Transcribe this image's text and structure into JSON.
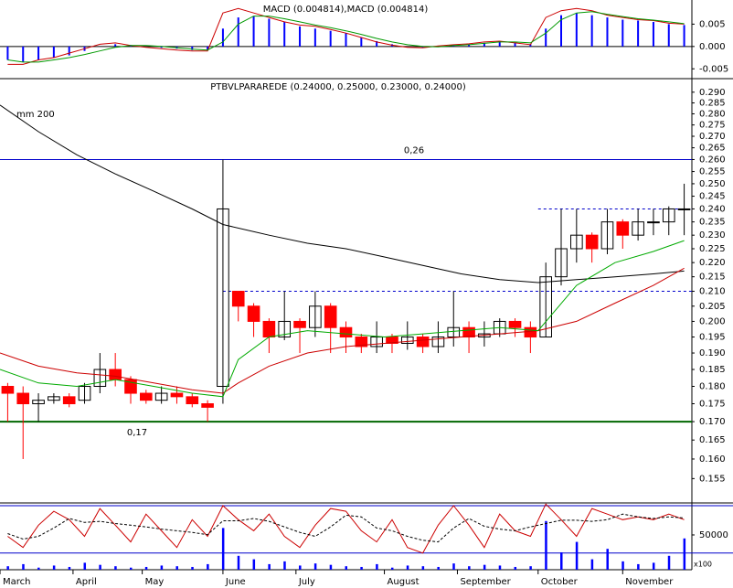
{
  "chart_data": [
    {
      "type": "macd",
      "title": "MACD (0.004814),MACD (0.004814)",
      "xlim": [
        0,
        180
      ],
      "x": [
        2,
        6,
        10,
        14,
        18,
        22,
        26,
        30,
        34,
        38,
        42,
        46,
        50,
        54,
        58,
        62,
        66,
        70,
        74,
        78,
        82,
        86,
        90,
        94,
        98,
        102,
        106,
        110,
        114,
        118,
        122,
        126,
        130,
        134,
        138,
        142,
        146,
        150,
        154,
        158,
        162,
        166,
        170,
        174,
        178
      ],
      "ylim": [
        -0.0072,
        0.0104
      ],
      "yticks": [
        0.005,
        {
          "value": 0,
          "label": "0.000"
        },
        -0.005
      ],
      "histogram": {
        "color": "#0000ff",
        "values": [
          -0.003,
          -0.0035,
          -0.003,
          -0.0025,
          -0.002,
          -0.001,
          0.0,
          0.0005,
          0.0003,
          0.0,
          -0.0003,
          -0.0005,
          -0.0008,
          -0.0008,
          0.004,
          0.0065,
          0.0068,
          0.0062,
          0.0055,
          0.0045,
          0.004,
          0.0035,
          0.003,
          0.002,
          0.0012,
          0.0005,
          0.0,
          -0.0003,
          0.0,
          0.0003,
          0.0005,
          0.0008,
          0.001,
          0.0008,
          0.0005,
          0.004,
          0.007,
          0.0075,
          0.007,
          0.0065,
          0.006,
          0.0058,
          0.0055,
          0.005,
          0.0048
        ]
      },
      "lines": [
        {
          "color": "#cc0000",
          "values": [
            -0.004,
            -0.004,
            -0.003,
            -0.0025,
            -0.0015,
            -0.0005,
            0.0005,
            0.0008,
            0.0002,
            -0.0002,
            -0.0005,
            -0.0008,
            -0.001,
            -0.001,
            0.0075,
            0.0085,
            0.0075,
            0.0065,
            0.0055,
            0.0048,
            0.0045,
            0.0038,
            0.003,
            0.002,
            0.001,
            0.0003,
            -0.0002,
            -0.0003,
            0.0001,
            0.0004,
            0.0006,
            0.001,
            0.0012,
            0.0008,
            0.0004,
            0.0065,
            0.008,
            0.0085,
            0.008,
            0.007,
            0.0065,
            0.006,
            0.0058,
            0.0052,
            0.005
          ]
        },
        {
          "color": "#009900",
          "values": [
            -0.003,
            -0.0035,
            -0.0035,
            -0.003,
            -0.0025,
            -0.0018,
            -0.001,
            -0.0002,
            0.0002,
            0.0002,
            0.0,
            -0.0003,
            -0.0006,
            -0.0008,
            0.001,
            0.005,
            0.0068,
            0.0068,
            0.0062,
            0.0055,
            0.0048,
            0.0042,
            0.0035,
            0.0027,
            0.0018,
            0.001,
            0.0004,
            0.0,
            -0.0001,
            0.0002,
            0.0004,
            0.0007,
            0.001,
            0.001,
            0.0008,
            0.003,
            0.006,
            0.0075,
            0.0078,
            0.0072,
            0.0067,
            0.0062,
            0.0059,
            0.0055,
            0.0051
          ]
        }
      ]
    },
    {
      "type": "candlestick",
      "title": "PTBVLPARAREDE (0.24000, 0.25000, 0.23000, 0.24000)",
      "log_scale": true,
      "xlim": [
        0,
        180
      ],
      "ylim": [
        0.149,
        0.296
      ],
      "yticks": [
        {
          "value": 0.29,
          "label": "0.290"
        },
        {
          "value": 0.285,
          "label": "0.285"
        },
        {
          "value": 0.28,
          "label": "0.280"
        },
        {
          "value": 0.275,
          "label": "0.275"
        },
        {
          "value": 0.27,
          "label": "0.270"
        },
        {
          "value": 0.265,
          "label": "0.265"
        },
        {
          "value": 0.26,
          "label": "0.260"
        },
        {
          "value": 0.255,
          "label": "0.255"
        },
        {
          "value": 0.25,
          "label": "0.250"
        },
        {
          "value": 0.245,
          "label": "0.245"
        },
        {
          "value": 0.24,
          "label": "0.240"
        },
        {
          "value": 0.235,
          "label": "0.235"
        },
        {
          "value": 0.23,
          "label": "0.230"
        },
        {
          "value": 0.225,
          "label": "0.225"
        },
        {
          "value": 0.22,
          "label": "0.220"
        },
        {
          "value": 0.215,
          "label": "0.215"
        },
        {
          "value": 0.21,
          "label": "0.210"
        },
        {
          "value": 0.205,
          "label": "0.205"
        },
        {
          "value": 0.2,
          "label": "0.200"
        },
        {
          "value": 0.195,
          "label": "0.195"
        },
        {
          "value": 0.19,
          "label": "0.190"
        },
        {
          "value": 0.185,
          "label": "0.185"
        },
        {
          "value": 0.18,
          "label": "0.180"
        },
        {
          "value": 0.175,
          "label": "0.175"
        },
        {
          "value": 0.17,
          "label": "0.170"
        },
        {
          "value": 0.165,
          "label": "0.165"
        },
        {
          "value": 0.16,
          "label": "0.160"
        },
        {
          "value": 0.155,
          "label": "0.155"
        }
      ],
      "x": [
        2,
        6,
        10,
        14,
        18,
        22,
        26,
        30,
        34,
        38,
        42,
        46,
        50,
        54,
        58,
        62,
        66,
        70,
        74,
        78,
        82,
        86,
        90,
        94,
        98,
        102,
        106,
        110,
        114,
        118,
        122,
        126,
        130,
        134,
        138,
        142,
        146,
        150,
        154,
        158,
        162,
        166,
        170,
        174,
        178
      ],
      "open": [
        0.18,
        0.178,
        0.175,
        0.176,
        0.177,
        0.176,
        0.18,
        0.185,
        0.182,
        0.178,
        0.176,
        0.178,
        0.177,
        0.175,
        0.18,
        0.21,
        0.205,
        0.2,
        0.195,
        0.2,
        0.198,
        0.205,
        0.198,
        0.195,
        0.192,
        0.195,
        0.193,
        0.195,
        0.192,
        0.195,
        0.198,
        0.195,
        0.196,
        0.2,
        0.198,
        0.195,
        0.215,
        0.225,
        0.23,
        0.225,
        0.235,
        0.23,
        0.235,
        0.235,
        0.24
      ],
      "high": [
        0.181,
        0.18,
        0.178,
        0.178,
        0.178,
        0.181,
        0.19,
        0.19,
        0.183,
        0.179,
        0.18,
        0.18,
        0.178,
        0.176,
        0.26,
        0.21,
        0.206,
        0.201,
        0.21,
        0.201,
        0.21,
        0.206,
        0.2,
        0.196,
        0.2,
        0.196,
        0.2,
        0.196,
        0.2,
        0.21,
        0.2,
        0.2,
        0.201,
        0.201,
        0.2,
        0.22,
        0.24,
        0.24,
        0.231,
        0.24,
        0.236,
        0.24,
        0.24,
        0.241,
        0.25
      ],
      "low": [
        0.17,
        0.16,
        0.17,
        0.175,
        0.174,
        0.175,
        0.178,
        0.18,
        0.175,
        0.175,
        0.175,
        0.175,
        0.174,
        0.17,
        0.175,
        0.2,
        0.195,
        0.19,
        0.194,
        0.19,
        0.195,
        0.19,
        0.19,
        0.19,
        0.19,
        0.19,
        0.191,
        0.19,
        0.19,
        0.192,
        0.19,
        0.192,
        0.195,
        0.195,
        0.19,
        0.195,
        0.212,
        0.22,
        0.22,
        0.223,
        0.225,
        0.228,
        0.23,
        0.23,
        0.23
      ],
      "close": [
        0.178,
        0.175,
        0.176,
        0.177,
        0.175,
        0.18,
        0.185,
        0.182,
        0.178,
        0.176,
        0.178,
        0.177,
        0.175,
        0.174,
        0.24,
        0.205,
        0.2,
        0.195,
        0.2,
        0.198,
        0.205,
        0.198,
        0.195,
        0.192,
        0.195,
        0.193,
        0.195,
        0.192,
        0.195,
        0.198,
        0.195,
        0.196,
        0.2,
        0.198,
        0.195,
        0.215,
        0.225,
        0.23,
        0.225,
        0.235,
        0.23,
        0.235,
        0.235,
        0.24,
        0.24
      ],
      "up_color": "#000000",
      "down_color": "#ff0000",
      "lines": [
        {
          "name": "mm 200",
          "color": "#000000",
          "x": [
            0,
            10,
            20,
            30,
            40,
            50,
            58,
            70,
            80,
            90,
            100,
            110,
            120,
            130,
            140,
            150,
            160,
            170,
            178
          ],
          "values": [
            0.284,
            0.272,
            0.262,
            0.254,
            0.247,
            0.24,
            0.234,
            0.23,
            0.227,
            0.225,
            0.222,
            0.219,
            0.216,
            0.214,
            0.213,
            0.214,
            0.215,
            0.216,
            0.217
          ]
        },
        {
          "color": "#cc0000",
          "x": [
            0,
            10,
            20,
            30,
            40,
            50,
            58,
            62,
            70,
            80,
            90,
            100,
            110,
            120,
            130,
            140,
            150,
            160,
            170,
            178
          ],
          "values": [
            0.19,
            0.186,
            0.184,
            0.183,
            0.181,
            0.179,
            0.178,
            0.181,
            0.186,
            0.19,
            0.192,
            0.193,
            0.194,
            0.195,
            0.196,
            0.197,
            0.2,
            0.206,
            0.212,
            0.218
          ]
        },
        {
          "color": "#00aa00",
          "x": [
            0,
            10,
            20,
            30,
            40,
            50,
            58,
            62,
            70,
            80,
            90,
            100,
            110,
            120,
            130,
            140,
            150,
            160,
            170,
            178
          ],
          "values": [
            0.185,
            0.181,
            0.18,
            0.182,
            0.18,
            0.178,
            0.177,
            0.188,
            0.195,
            0.197,
            0.196,
            0.195,
            0.196,
            0.197,
            0.198,
            0.197,
            0.212,
            0.22,
            0.224,
            0.228
          ]
        }
      ],
      "hlines": [
        {
          "value": 0.26,
          "label": "0,26",
          "color": "#0000cc"
        },
        {
          "value": 0.17,
          "label": "0,17",
          "color": "#006600"
        }
      ],
      "dashed_lines": [
        {
          "value": 0.21,
          "from": 58,
          "color": "#0000cc"
        },
        {
          "value": 0.24,
          "from": 140,
          "color": "#0000cc"
        }
      ]
    },
    {
      "type": "volume",
      "xlim": [
        0,
        180
      ],
      "xticks": [
        {
          "value": 0,
          "label": "March"
        },
        {
          "value": 19,
          "label": "April"
        },
        {
          "value": 37,
          "label": "May"
        },
        {
          "value": 58,
          "label": "June"
        },
        {
          "value": 77,
          "label": "July"
        },
        {
          "value": 100,
          "label": "August"
        },
        {
          "value": 119,
          "label": "September"
        },
        {
          "value": 140,
          "label": "October"
        },
        {
          "value": 162,
          "label": "November"
        }
      ],
      "x": [
        2,
        6,
        10,
        14,
        18,
        22,
        26,
        30,
        34,
        38,
        42,
        46,
        50,
        54,
        58,
        62,
        66,
        70,
        74,
        78,
        82,
        86,
        90,
        94,
        98,
        102,
        106,
        110,
        114,
        118,
        122,
        126,
        130,
        134,
        138,
        142,
        146,
        150,
        154,
        158,
        162,
        166,
        170,
        174,
        178
      ],
      "ylim": [
        0,
        96000
      ],
      "yticks": [
        50000
      ],
      "unit": "x100",
      "volume": {
        "color": "#0000ff",
        "values": [
          5000,
          8000,
          3000,
          6000,
          4000,
          10000,
          7000,
          5000,
          3000,
          4000,
          6000,
          5000,
          4000,
          8000,
          60000,
          20000,
          15000,
          8000,
          12000,
          6000,
          9000,
          7000,
          5000,
          4000,
          8000,
          3000,
          6000,
          5000,
          4000,
          9000,
          5000,
          7000,
          6000,
          4000,
          5000,
          70000,
          25000,
          40000,
          15000,
          30000,
          12000,
          8000,
          10000,
          20000,
          45000
        ]
      },
      "stoch": {
        "ylim": [
          -20,
          100
        ],
        "levels": [
          95,
          10
        ],
        "level_color": "#0000cc",
        "k": {
          "color": "#cc0000",
          "values": [
            40,
            20,
            60,
            85,
            70,
            40,
            90,
            60,
            30,
            80,
            50,
            20,
            70,
            40,
            95,
            70,
            50,
            80,
            40,
            20,
            60,
            90,
            85,
            50,
            30,
            70,
            20,
            10,
            60,
            95,
            60,
            20,
            80,
            50,
            40,
            98,
            70,
            40,
            90,
            80,
            70,
            75,
            70,
            80,
            70
          ]
        },
        "d": {
          "color": "#000000",
          "values": [
            45,
            35,
            40,
            55,
            72,
            65,
            67,
            63,
            60,
            57,
            53,
            50,
            47,
            43,
            68,
            68,
            72,
            67,
            57,
            47,
            40,
            57,
            78,
            75,
            55,
            50,
            40,
            33,
            30,
            55,
            72,
            58,
            53,
            50,
            57,
            63,
            69,
            69,
            67,
            70,
            80,
            75,
            72,
            75,
            73
          ]
        }
      }
    }
  ]
}
